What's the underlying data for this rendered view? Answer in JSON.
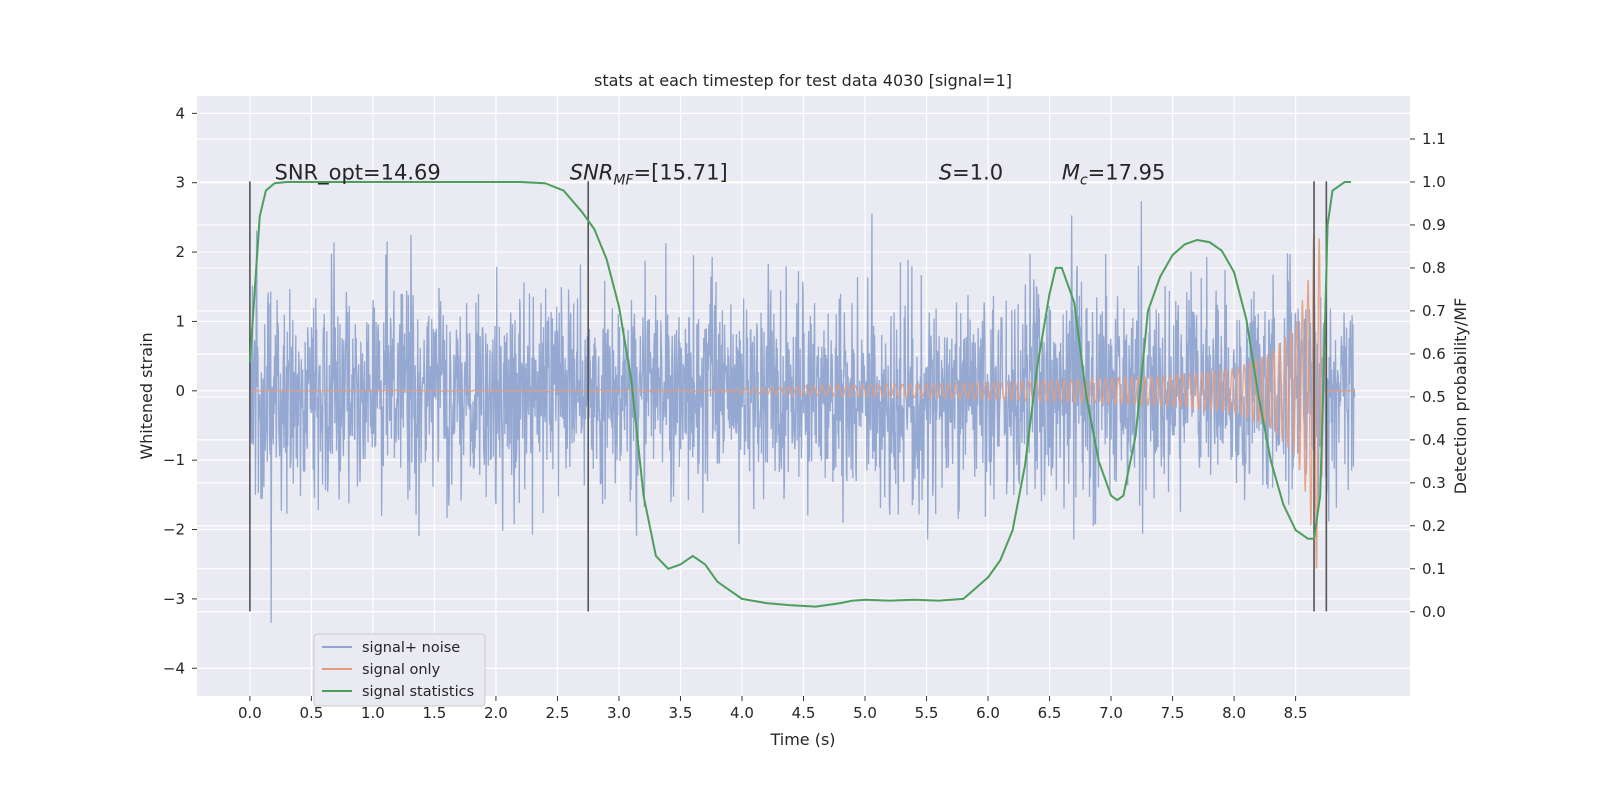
{
  "chart_data": {
    "type": "line",
    "title": "stats at each timestep for test data 4030 [signal=1]",
    "xlabel": "Time (s)",
    "ylabel_left": "Whitened strain",
    "ylabel_right": "Detection probability/MF",
    "xlim": [
      -0.43,
      9.43
    ],
    "ylim_left": [
      -4.4,
      4.25
    ],
    "ylim_right": [
      -0.196,
      1.2
    ],
    "x_ticks": [
      "0.0",
      "0.5",
      "1.0",
      "1.5",
      "2.0",
      "2.5",
      "3.0",
      "3.5",
      "4.0",
      "4.5",
      "5.0",
      "5.5",
      "6.0",
      "6.5",
      "7.0",
      "7.5",
      "8.0",
      "8.5"
    ],
    "y_ticks_left": [
      "4",
      "3",
      "2",
      "1",
      "0",
      "−1",
      "−2",
      "−3",
      "−4"
    ],
    "y_ticks_right": [
      "1.1",
      "1.0",
      "0.9",
      "0.8",
      "0.7",
      "0.6",
      "0.5",
      "0.4",
      "0.3",
      "0.2",
      "0.1",
      "0.0"
    ],
    "grid": true,
    "legend_position": "lower-left",
    "series": [
      {
        "name": "signal+ noise",
        "color": "#8fa4cf",
        "axis": "left",
        "description_only": "dense noisy strain, amplitude envelope about +-2.3 with spikes up to about +-3.9",
        "x_range": [
          0,
          8.98
        ],
        "amplitude": 2.3,
        "peak": 3.9
      },
      {
        "name": "signal only",
        "color": "#e39c80",
        "axis": "left",
        "x_range": [
          0,
          8.98
        ],
        "envelope": [
          [
            0,
            0
          ],
          [
            3.8,
            0.02
          ],
          [
            4.5,
            0.07
          ],
          [
            5.5,
            0.1
          ],
          [
            6.5,
            0.15
          ],
          [
            7.5,
            0.22
          ],
          [
            8.0,
            0.32
          ],
          [
            8.3,
            0.55
          ],
          [
            8.5,
            0.95
          ],
          [
            8.6,
            1.6
          ],
          [
            8.68,
            2.75
          ],
          [
            8.72,
            1.0
          ],
          [
            8.76,
            0
          ],
          [
            8.98,
            0
          ]
        ]
      },
      {
        "name": "signal statistics",
        "color": "#4c9e5c",
        "axis": "right",
        "x": [
          0.0,
          0.08,
          0.13,
          0.2,
          0.3,
          0.5,
          1.0,
          1.5,
          2.0,
          2.2,
          2.4,
          2.55,
          2.7,
          2.8,
          2.9,
          3.0,
          3.1,
          3.2,
          3.3,
          3.4,
          3.5,
          3.6,
          3.7,
          3.8,
          3.9,
          4.0,
          4.2,
          4.4,
          4.6,
          4.8,
          4.9,
          5.0,
          5.2,
          5.4,
          5.6,
          5.8,
          6.0,
          6.1,
          6.2,
          6.3,
          6.4,
          6.5,
          6.55,
          6.6,
          6.7,
          6.8,
          6.9,
          7.0,
          7.05,
          7.1,
          7.2,
          7.3,
          7.4,
          7.5,
          7.6,
          7.7,
          7.8,
          7.9,
          8.0,
          8.1,
          8.2,
          8.3,
          8.4,
          8.5,
          8.6,
          8.65,
          8.7,
          8.73,
          8.76,
          8.8,
          8.85,
          8.9,
          8.95
        ],
        "y": [
          0.58,
          0.92,
          0.98,
          0.997,
          1.0,
          1.0,
          1.0,
          1.0,
          1.0,
          1.0,
          0.997,
          0.98,
          0.93,
          0.89,
          0.82,
          0.71,
          0.54,
          0.27,
          0.13,
          0.1,
          0.11,
          0.13,
          0.11,
          0.07,
          0.05,
          0.03,
          0.02,
          0.015,
          0.012,
          0.02,
          0.026,
          0.028,
          0.026,
          0.028,
          0.026,
          0.03,
          0.08,
          0.12,
          0.19,
          0.34,
          0.57,
          0.74,
          0.8,
          0.8,
          0.72,
          0.5,
          0.35,
          0.27,
          0.26,
          0.27,
          0.41,
          0.7,
          0.78,
          0.83,
          0.855,
          0.865,
          0.86,
          0.84,
          0.79,
          0.68,
          0.5,
          0.35,
          0.25,
          0.19,
          0.17,
          0.17,
          0.27,
          0.57,
          0.9,
          0.98,
          0.99,
          1.0,
          1.0
        ]
      }
    ],
    "vertical_lines": [
      0.0,
      2.75,
      8.65,
      8.75
    ],
    "annotations": [
      {
        "text": "SNR_opt=14.69",
        "x": 0.2
      },
      {
        "text": "SNR",
        "sub": "MF",
        "suffix": "=[15.71]",
        "x": 2.6
      },
      {
        "text": "S",
        "suffix": "=1.0",
        "x": 5.6
      },
      {
        "text": "M",
        "sub": "c",
        "suffix": "=17.95",
        "x": 6.6
      }
    ]
  }
}
